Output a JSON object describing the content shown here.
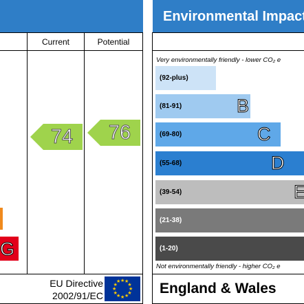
{
  "header": {
    "title": "Environmental Impact"
  },
  "columns": {
    "current": "Current",
    "potential": "Potential"
  },
  "notes": {
    "top": "Very environmentally friendly - lower CO₂ e",
    "bottom": "Not environmentally friendly - higher CO₂ e"
  },
  "bands": [
    {
      "range": "(92-plus)",
      "letter": "A",
      "color": "#cde3f7",
      "text_color": "#000000"
    },
    {
      "range": "(81-91)",
      "letter": "B",
      "color": "#9fcaf0",
      "text_color": "#000000"
    },
    {
      "range": "(69-80)",
      "letter": "C",
      "color": "#5fa8e8",
      "text_color": "#000000"
    },
    {
      "range": "(55-68)",
      "letter": "D",
      "color": "#2b7fd0",
      "text_color": "#000000"
    },
    {
      "range": "(39-54)",
      "letter": "E",
      "color": "#bdbdbd",
      "text_color": "#000000"
    },
    {
      "range": "(21-38)",
      "letter": "F",
      "color": "#7a7a7a",
      "text_color": "#ffffff"
    },
    {
      "range": "(1-20)",
      "letter": "G",
      "color": "#4a4a4a",
      "text_color": "#ffffff"
    }
  ],
  "ratings": {
    "current": {
      "value": "74",
      "color": "#9fd34c"
    },
    "potential": {
      "value": "76",
      "color": "#9fd34c"
    }
  },
  "left_scale": {
    "letter": "G",
    "color": "#e2001a"
  },
  "footer": {
    "directive_line1": "EU Directive",
    "directive_line2": "2002/91/EC",
    "region": "England & Wales"
  }
}
